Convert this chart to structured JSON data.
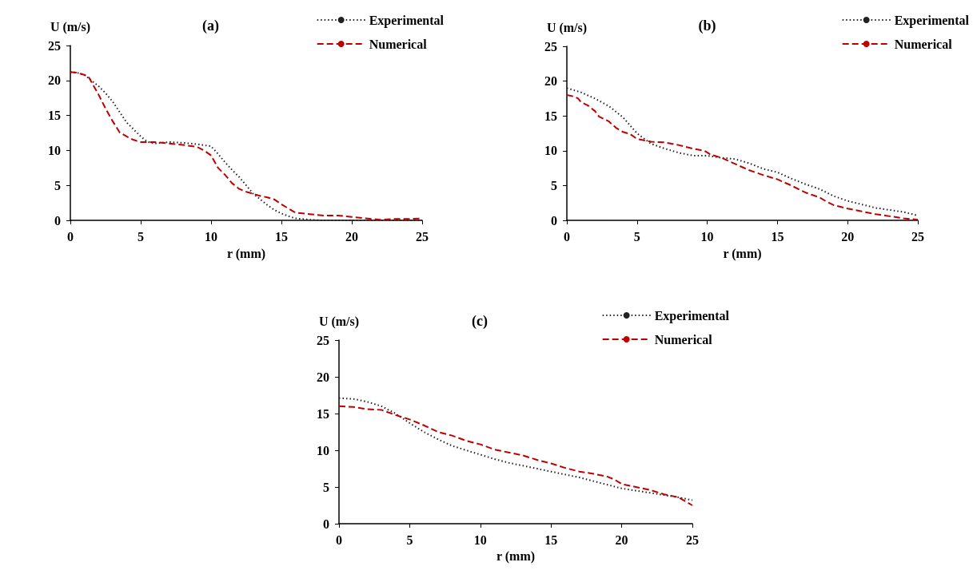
{
  "chart_data": [
    {
      "type": "line",
      "title": "(a)",
      "xlabel": "r (mm)",
      "ylabel": "U (m/s)",
      "xlim": [
        0,
        25
      ],
      "xticks": [
        0,
        5,
        10,
        15,
        20,
        25
      ],
      "ylim": [
        0,
        25
      ],
      "yticks": [
        0,
        5,
        10,
        15,
        20,
        25
      ],
      "grid": false,
      "legend": "top right",
      "marker": "none",
      "series": [
        {
          "name": "Experimental",
          "color": "#222222",
          "line_style": "dotted",
          "x": [
            0,
            0.5,
            1,
            1.5,
            2,
            2.5,
            3,
            3.5,
            4,
            4.5,
            5,
            5.5,
            6,
            7,
            8,
            9,
            10,
            10.5,
            11,
            11.5,
            12,
            12.5,
            13,
            13.5,
            14,
            14.5,
            15,
            15.5,
            16,
            17,
            18,
            20,
            22,
            25
          ],
          "values": [
            21.2,
            21.1,
            20.8,
            20,
            19.2,
            18.2,
            17,
            15.5,
            14,
            13,
            12,
            11.2,
            11,
            11.2,
            11.1,
            10.9,
            10.6,
            9.5,
            8.3,
            7.2,
            6.2,
            5,
            3.8,
            3,
            2.2,
            1.5,
            1,
            0.6,
            0.3,
            0.1,
            0,
            0,
            0,
            0
          ]
        },
        {
          "name": "Numerical",
          "color": "#c00000",
          "line_style": "dashed",
          "x": [
            0,
            0.5,
            1,
            1.3,
            2,
            2.5,
            3,
            3.5,
            4,
            4.5,
            5,
            6,
            7,
            8,
            9,
            9.5,
            10,
            10.5,
            11,
            11.5,
            12,
            12.5,
            13,
            13.5,
            14,
            14.5,
            15,
            15.5,
            16,
            17,
            18,
            19,
            20,
            21,
            22,
            23,
            24,
            25
          ],
          "values": [
            21.2,
            21.1,
            20.8,
            20.5,
            18,
            16,
            14.2,
            12.6,
            12,
            11.5,
            11.2,
            11.2,
            11,
            10.8,
            10.5,
            10,
            9.3,
            7.5,
            6.5,
            5.3,
            4.5,
            4.1,
            3.8,
            3.5,
            3.3,
            3,
            2.3,
            1.7,
            1.1,
            0.9,
            0.7,
            0.7,
            0.5,
            0.3,
            0.1,
            0.2,
            0.2,
            0.3
          ]
        }
      ]
    },
    {
      "type": "line",
      "title": "(b)",
      "xlabel": "r (mm)",
      "ylabel": "U (m/s)",
      "xlim": [
        0,
        25
      ],
      "xticks": [
        0,
        5,
        10,
        15,
        20,
        25
      ],
      "ylim": [
        0,
        25
      ],
      "yticks": [
        0,
        5,
        10,
        15,
        20,
        25
      ],
      "grid": false,
      "legend": "top right",
      "marker": "none",
      "series": [
        {
          "name": "Experimental",
          "color": "#222222",
          "line_style": "dotted",
          "x": [
            0,
            1,
            2,
            3,
            4,
            5,
            6,
            7,
            8,
            9,
            10,
            11,
            12,
            13,
            14,
            15,
            16,
            17,
            18,
            19,
            20,
            21,
            22,
            23,
            24,
            25
          ],
          "values": [
            19,
            18.4,
            17.5,
            16.4,
            14.8,
            12.5,
            11,
            10.3,
            9.7,
            9.3,
            9.3,
            9,
            8.8,
            8.2,
            7.4,
            6.9,
            6,
            5.2,
            4.5,
            3.5,
            2.8,
            2.3,
            1.8,
            1.5,
            1.2,
            0.7
          ]
        },
        {
          "name": "Numerical",
          "color": "#c00000",
          "line_style": "dashed",
          "x": [
            0,
            0.5,
            0.8,
            1,
            1.5,
            2,
            2.3,
            3,
            3.5,
            4,
            4.5,
            5,
            6,
            7,
            8,
            9,
            9.8,
            10.2,
            11,
            12,
            13,
            14,
            15,
            16,
            17,
            18,
            18.5,
            19,
            20,
            21,
            22,
            23,
            24,
            25
          ],
          "values": [
            18,
            17.8,
            17.5,
            17,
            16.5,
            15.7,
            14.9,
            14.2,
            13.3,
            12.7,
            12.4,
            11.7,
            11.3,
            11.2,
            10.8,
            10.3,
            10,
            9.5,
            9,
            8.1,
            7.2,
            6.5,
            5.9,
            5,
            4,
            3.3,
            2.7,
            2.2,
            1.7,
            1.3,
            0.9,
            0.6,
            0.3,
            0.1
          ]
        }
      ]
    },
    {
      "type": "line",
      "title": "(c)",
      "xlabel": "r (mm)",
      "ylabel": "U (m/s)",
      "xlim": [
        0,
        25
      ],
      "xticks": [
        0,
        5,
        10,
        15,
        20,
        25
      ],
      "ylim": [
        0,
        25
      ],
      "yticks": [
        0,
        5,
        10,
        15,
        20,
        25
      ],
      "grid": false,
      "legend": "top right",
      "marker": "none",
      "series": [
        {
          "name": "Experimental",
          "color": "#222222",
          "line_style": "dotted",
          "x": [
            0,
            1,
            2,
            3,
            4,
            5,
            6,
            7,
            8,
            9,
            10,
            11,
            12,
            13,
            14,
            15,
            16,
            17,
            18,
            19,
            20,
            21,
            22,
            23,
            24,
            25
          ],
          "values": [
            17.1,
            17,
            16.6,
            16,
            15,
            13.7,
            12.5,
            11.5,
            10.6,
            10,
            9.4,
            8.8,
            8.3,
            7.9,
            7.5,
            7.1,
            6.7,
            6.3,
            5.8,
            5.3,
            4.8,
            4.5,
            4.2,
            3.9,
            3.6,
            3.2
          ]
        },
        {
          "name": "Numerical",
          "color": "#c00000",
          "line_style": "dashed",
          "x": [
            0,
            1,
            2,
            3,
            4,
            5,
            6,
            7,
            8,
            9,
            10,
            11,
            12,
            13,
            14,
            15,
            16,
            17,
            18,
            19,
            19.5,
            20,
            21,
            22,
            23,
            24,
            25
          ],
          "values": [
            16,
            15.9,
            15.6,
            15.5,
            14.8,
            14.2,
            13.4,
            12.5,
            12,
            11.3,
            10.8,
            10.1,
            9.7,
            9.3,
            8.7,
            8.2,
            7.6,
            7.1,
            6.8,
            6.4,
            6,
            5.4,
            5,
            4.6,
            4,
            3.6,
            2.5
          ]
        }
      ]
    }
  ]
}
